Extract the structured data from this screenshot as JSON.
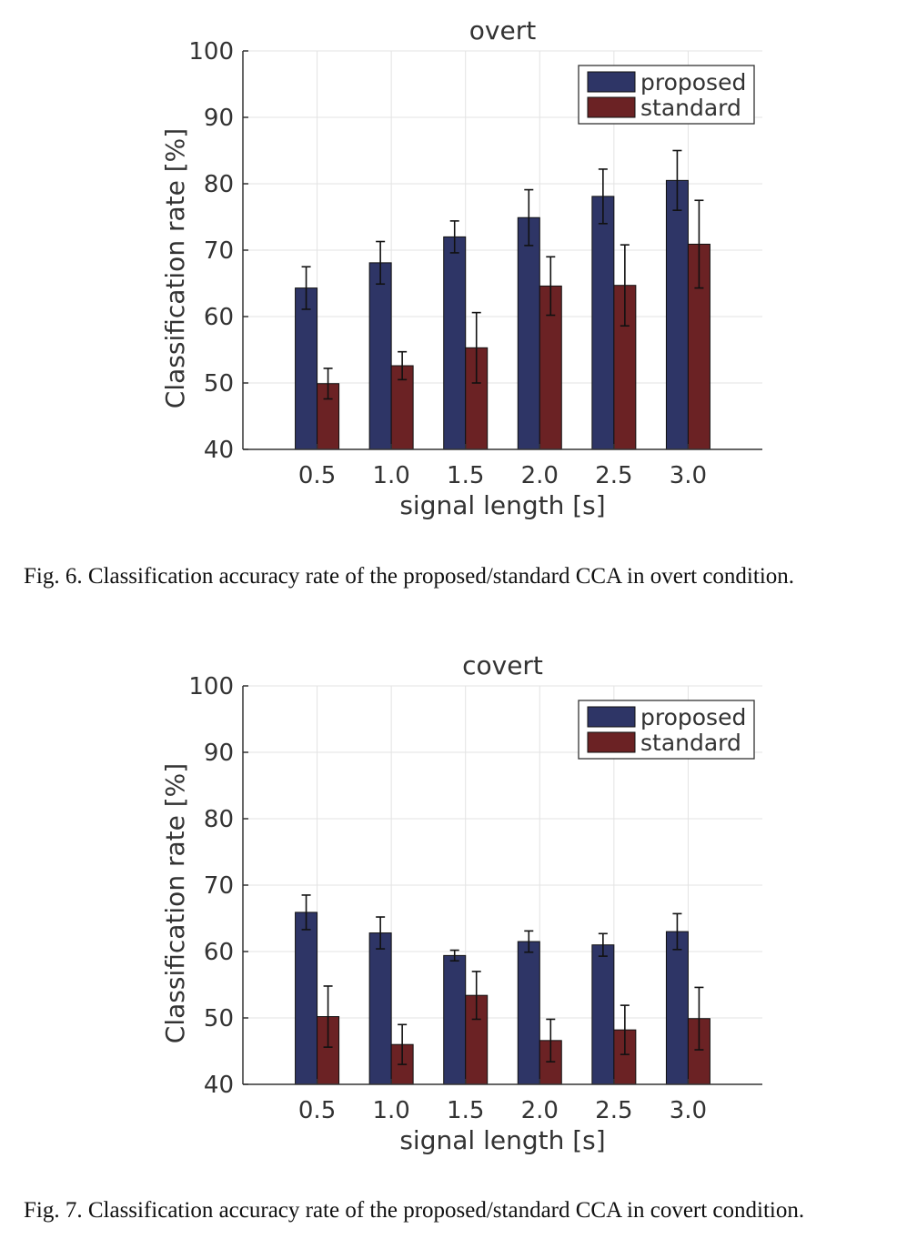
{
  "chart_data": [
    {
      "type": "bar",
      "title": "overt",
      "xlabel": "signal length [s]",
      "ylabel": "Classification rate [%]",
      "ylim": [
        40,
        100
      ],
      "yticks": [
        "40",
        "50",
        "60",
        "70",
        "80",
        "90",
        "100"
      ],
      "categories": [
        "0.5",
        "1.0",
        "1.5",
        "2.0",
        "2.5",
        "3.0"
      ],
      "grid": true,
      "legend": "top-right",
      "series": [
        {
          "name": "proposed",
          "color": "#2e3566",
          "values": [
            64.3,
            68.1,
            72.0,
            74.9,
            78.1,
            80.5
          ],
          "errors": [
            3.2,
            3.2,
            2.4,
            4.2,
            4.1,
            4.5
          ]
        },
        {
          "name": "standard",
          "color": "#6b2224",
          "values": [
            49.9,
            52.6,
            55.3,
            64.6,
            64.7,
            70.9
          ],
          "errors": [
            2.3,
            2.1,
            5.3,
            4.4,
            6.1,
            6.6
          ]
        }
      ]
    },
    {
      "type": "bar",
      "title": "covert",
      "xlabel": "signal length [s]",
      "ylabel": "Classification rate [%]",
      "ylim": [
        40,
        100
      ],
      "yticks": [
        "40",
        "50",
        "60",
        "70",
        "80",
        "90",
        "100"
      ],
      "categories": [
        "0.5",
        "1.0",
        "1.5",
        "2.0",
        "2.5",
        "3.0"
      ],
      "grid": true,
      "legend": "top-right",
      "series": [
        {
          "name": "proposed",
          "color": "#2e3566",
          "values": [
            65.9,
            62.8,
            59.4,
            61.5,
            61.0,
            63.0
          ],
          "errors": [
            2.6,
            2.4,
            0.8,
            1.6,
            1.7,
            2.7
          ]
        },
        {
          "name": "standard",
          "color": "#6b2224",
          "values": [
            50.2,
            46.0,
            53.4,
            46.6,
            48.2,
            49.9
          ],
          "errors": [
            4.6,
            3.0,
            3.6,
            3.2,
            3.7,
            4.7
          ]
        }
      ]
    }
  ],
  "captions": [
    "Fig. 6.   Classification accuracy rate of the proposed/standard CCA in overt condition.",
    "Fig. 7.   Classification accuracy rate of the proposed/standard CCA in covert condition."
  ]
}
